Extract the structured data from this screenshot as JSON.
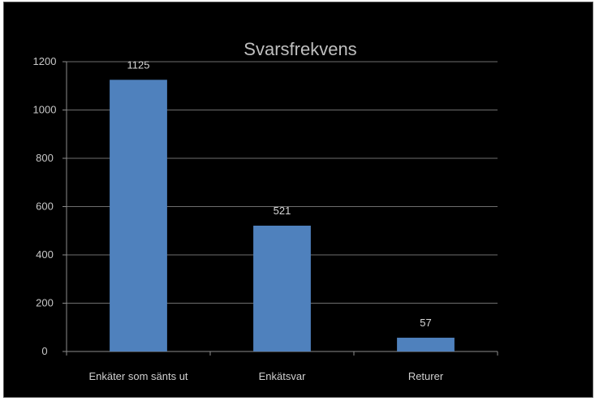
{
  "chart_data": {
    "type": "bar",
    "title": "Svarsfrekvens",
    "categories": [
      "Enkäter som sänts ut",
      "Enkätsvar",
      "Returer"
    ],
    "values": [
      1125,
      521,
      57
    ],
    "data_labels": [
      "1125",
      "521",
      "57"
    ],
    "ylim": [
      0,
      1200
    ],
    "yticks": [
      0,
      200,
      400,
      600,
      800,
      1000,
      1200
    ],
    "grid": true,
    "legend": "none",
    "colors": {
      "bar": "#4f81bd",
      "background": "#000000",
      "grid": "#6e6e6e",
      "axis": "#8c8c8c"
    }
  }
}
